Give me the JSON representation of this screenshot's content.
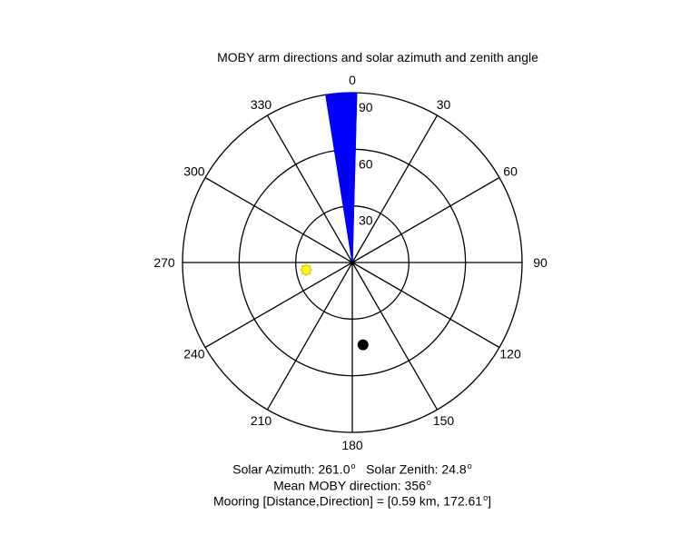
{
  "chart_data": {
    "type": "polar",
    "title": "MOBY arm directions and solar azimuth and zenith angle",
    "angle_tick_labels": [
      "0",
      "30",
      "60",
      "90",
      "120",
      "150",
      "180",
      "210",
      "240",
      "270",
      "300",
      "330"
    ],
    "angle_ticks_deg": [
      0,
      30,
      60,
      90,
      120,
      150,
      180,
      210,
      240,
      270,
      300,
      330
    ],
    "radial_ticks": [
      30,
      60,
      90
    ],
    "radial_tick_labels": [
      "30",
      "60",
      "90"
    ],
    "rmax": 90,
    "grid": true,
    "arm_directions": {
      "color": "#0000ff",
      "directions_deg": [
        351,
        352,
        353,
        353.5,
        354,
        354.5,
        355,
        355.5,
        356,
        356.5,
        357,
        357.5,
        358,
        358.5,
        359,
        359.5,
        0,
        1.5
      ],
      "length": 90
    },
    "sun": {
      "azimuth_deg": 261.0,
      "zenith_deg": 24.8,
      "color": "#ffff00"
    },
    "mooring": {
      "direction_deg": 172.61,
      "r": 44,
      "color": "#000000"
    }
  },
  "captions": {
    "solar_azimuth_label": "Solar Azimuth: 261.0",
    "solar_zenith_label": "Solar Zenith: 24.8",
    "mean_direction_label": "Mean MOBY direction: 356",
    "mooring_label": "Mooring [Distance,Direction] = [0.59 km, 172.61",
    "mooring_close": "]"
  }
}
